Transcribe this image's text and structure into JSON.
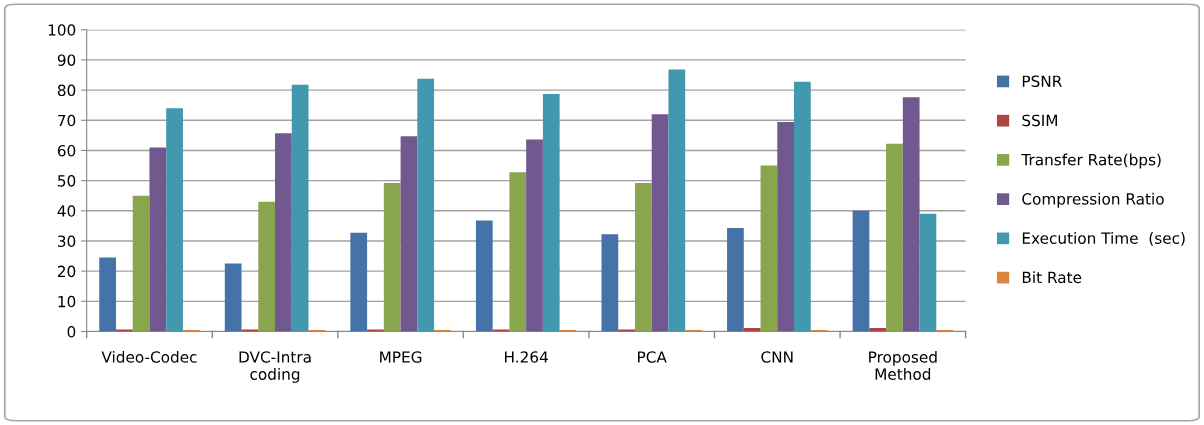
{
  "chart_data": {
    "type": "bar",
    "categories": [
      "Video-Codec",
      "DVC-Intra\ncoding",
      "MPEG",
      "H.264",
      "PCA",
      "CNN",
      "Proposed\nMethod"
    ],
    "series": [
      {
        "name": "PSNR",
        "color": "#4572a7",
        "values": [
          24.5,
          22.5,
          32.7,
          36.8,
          32.2,
          34.3,
          40
        ]
      },
      {
        "name": "SSIM",
        "color": "#aa4643",
        "values": [
          0.7,
          0.7,
          0.7,
          0.7,
          0.7,
          1.2,
          1.2
        ]
      },
      {
        "name": "Transfer Rate(bps)",
        "color": "#89a54e",
        "values": [
          45,
          43,
          49.2,
          52.8,
          49.2,
          55,
          62.2
        ]
      },
      {
        "name": "Compression Ratio",
        "color": "#71588f",
        "values": [
          61,
          65.7,
          64.7,
          63.6,
          72,
          69.4,
          77.6
        ]
      },
      {
        "name": "Execution Time  (sec)",
        "color": "#4198af",
        "values": [
          74,
          81.8,
          83.8,
          78.7,
          86.8,
          82.8,
          39
        ]
      },
      {
        "name": "Bit Rate",
        "color": "#db843d",
        "values": [
          0.5,
          0.5,
          0.5,
          0.5,
          0.5,
          0.5,
          0.5
        ]
      }
    ],
    "ylim": [
      0,
      100
    ],
    "yticks": [
      0,
      10,
      20,
      30,
      40,
      50,
      60,
      70,
      80,
      90,
      100
    ],
    "grid": "y",
    "legend": "right"
  }
}
